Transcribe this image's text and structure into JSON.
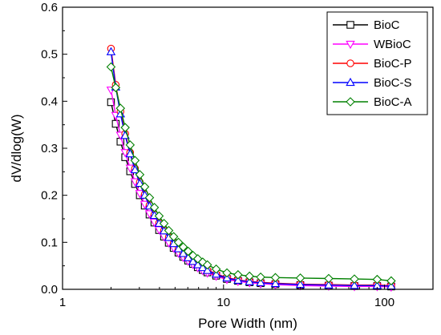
{
  "chart_data": {
    "type": "line",
    "xlabel": "Pore Width (nm)",
    "ylabel": "dV/dlog(W)",
    "xscale": "log",
    "xlim": [
      1,
      200
    ],
    "ylim": [
      0,
      0.6
    ],
    "x_ticks": [
      1,
      10,
      100
    ],
    "x_tick_labels": [
      "1",
      "10",
      "100"
    ],
    "y_ticks": [
      0.0,
      0.1,
      0.2,
      0.3,
      0.4,
      0.5,
      0.6
    ],
    "y_tick_labels": [
      "0.0",
      "0.1",
      "0.2",
      "0.3",
      "0.4",
      "0.5",
      "0.6"
    ],
    "grid": false,
    "legend_position": "top-right",
    "x": [
      2.0,
      2.14,
      2.29,
      2.45,
      2.63,
      2.82,
      3.02,
      3.24,
      3.47,
      3.72,
      3.98,
      4.27,
      4.57,
      4.9,
      5.25,
      5.62,
      6.03,
      6.46,
      6.92,
      7.42,
      7.94,
      9.0,
      10.5,
      12.3,
      14.5,
      17.0,
      21.0,
      30.0,
      45.0,
      65.0,
      90.0,
      110.0
    ],
    "series": [
      {
        "name": "BioC",
        "color": "#000000",
        "marker": "square",
        "values": [
          0.398,
          0.352,
          0.314,
          0.281,
          0.251,
          0.224,
          0.2,
          0.178,
          0.159,
          0.142,
          0.126,
          0.112,
          0.099,
          0.088,
          0.078,
          0.069,
          0.061,
          0.054,
          0.047,
          0.041,
          0.036,
          0.029,
          0.022,
          0.018,
          0.015,
          0.013,
          0.011,
          0.009,
          0.008,
          0.007,
          0.007,
          0.006
        ]
      },
      {
        "name": "WBioC",
        "color": "#ff00ff",
        "marker": "triangle-down",
        "values": [
          0.424,
          0.37,
          0.328,
          0.291,
          0.258,
          0.229,
          0.204,
          0.181,
          0.161,
          0.143,
          0.127,
          0.112,
          0.099,
          0.088,
          0.077,
          0.068,
          0.06,
          0.053,
          0.046,
          0.04,
          0.035,
          0.028,
          0.021,
          0.017,
          0.014,
          0.012,
          0.01,
          0.008,
          0.007,
          0.006,
          0.006,
          0.005
        ]
      },
      {
        "name": "BioC-P",
        "color": "#ff0000",
        "marker": "circle",
        "values": [
          0.512,
          0.435,
          0.378,
          0.331,
          0.291,
          0.257,
          0.228,
          0.202,
          0.179,
          0.159,
          0.141,
          0.125,
          0.111,
          0.098,
          0.087,
          0.077,
          0.068,
          0.06,
          0.053,
          0.047,
          0.041,
          0.033,
          0.025,
          0.02,
          0.017,
          0.015,
          0.013,
          0.011,
          0.01,
          0.009,
          0.009,
          0.008
        ]
      },
      {
        "name": "BioC-S",
        "color": "#0000ff",
        "marker": "triangle-up",
        "values": [
          0.505,
          0.43,
          0.373,
          0.327,
          0.288,
          0.254,
          0.225,
          0.2,
          0.177,
          0.157,
          0.14,
          0.124,
          0.11,
          0.097,
          0.086,
          0.076,
          0.067,
          0.059,
          0.052,
          0.046,
          0.04,
          0.032,
          0.024,
          0.019,
          0.016,
          0.014,
          0.012,
          0.01,
          0.009,
          0.008,
          0.008,
          0.007
        ]
      },
      {
        "name": "BioC-A",
        "color": "#008000",
        "marker": "diamond",
        "values": [
          0.473,
          0.429,
          0.385,
          0.344,
          0.307,
          0.274,
          0.244,
          0.218,
          0.195,
          0.174,
          0.156,
          0.14,
          0.125,
          0.112,
          0.1,
          0.09,
          0.081,
          0.072,
          0.065,
          0.058,
          0.052,
          0.043,
          0.035,
          0.031,
          0.028,
          0.026,
          0.025,
          0.024,
          0.023,
          0.022,
          0.021,
          0.018
        ]
      }
    ]
  }
}
